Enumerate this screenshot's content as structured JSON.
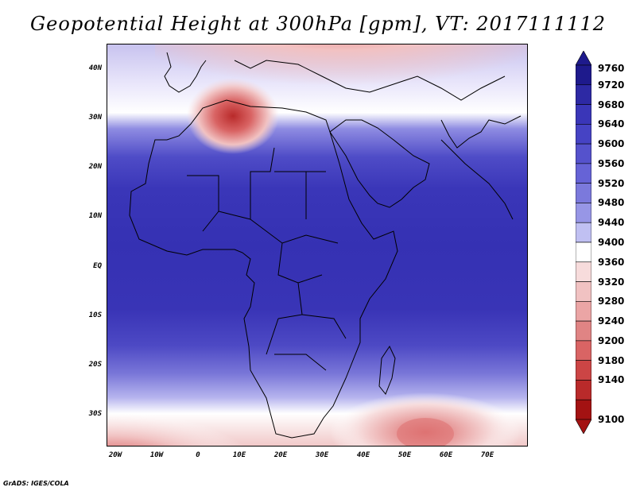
{
  "title": "Geopotential Height at 300hPa [gpm], VT: 2017111112",
  "lat_labels": [
    "40N",
    "30N",
    "20N",
    "10N",
    "EQ",
    "10S",
    "20S",
    "30S"
  ],
  "lon_labels": [
    "20W",
    "10W",
    "0",
    "10E",
    "20E",
    "30E",
    "40E",
    "50E",
    "60E",
    "70E"
  ],
  "colorbar": {
    "levels": [
      "9760",
      "9720",
      "9680",
      "9640",
      "9600",
      "9560",
      "9520",
      "9480",
      "9440",
      "9400",
      "9360",
      "9320",
      "9280",
      "9240",
      "9200",
      "9180",
      "9140",
      "9100"
    ],
    "colors": [
      "#1e1a8c",
      "#2d29a4",
      "#3a36b8",
      "#4643c4",
      "#5552cc",
      "#6663d6",
      "#7b79dc",
      "#9796e6",
      "#c0c0f2",
      "#ffffff",
      "#f7dcdc",
      "#f1c2c2",
      "#eba5a5",
      "#e08484",
      "#d96464",
      "#cc4545",
      "#b92a2a",
      "#a31212"
    ]
  },
  "credit": "GrADS: IGES/COLA",
  "colors": {
    "band_blue_core": "#3531b3",
    "band_red": "#c43030",
    "white": "#ffffff"
  }
}
